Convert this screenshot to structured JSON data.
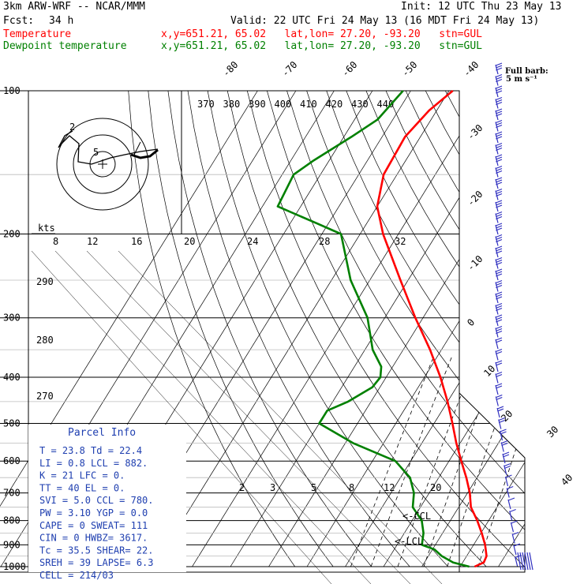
{
  "header": {
    "model": "3km ARW-WRF -- NCAR/MMM",
    "init": "Init: 12 UTC Thu 23 May 13",
    "fcst_label": "Fcst:",
    "fcst_value": "34 h",
    "valid": "Valid: 22 UTC Fri 24 May 13 (16 MDT Fri 24 May 13)",
    "temp_label": "Temperature",
    "temp_info": "x,y=651.21, 65.02   lat,lon= 27.20, -93.20   stn=GUL",
    "dew_label": "Dewpoint temperature",
    "dew_info": "x,y=651.21, 65.02   lat,lon= 27.20, -93.20   stn=GUL",
    "barb_note_1": "Full barb:",
    "barb_note_2": "5 m s⁻¹"
  },
  "colors": {
    "temperature": "#ff0000",
    "dewpoint": "#008000",
    "parcel_info": "#1f3fb0",
    "barbs": "#3030c0",
    "hodograph": "#000000"
  },
  "chart_data": {
    "type": "skew-t",
    "pressure_labels": [
      "100",
      "200",
      "300",
      "400",
      "500",
      "600",
      "700",
      "800",
      "900",
      "1000"
    ],
    "isotherm_labels": [
      "-80",
      "-70",
      "-60",
      "-50",
      "-40",
      "-30",
      "-20",
      "-10",
      "0",
      "10",
      "20",
      "30",
      "40"
    ],
    "theta_labels": [
      "370",
      "380",
      "390",
      "400",
      "410",
      "420",
      "430",
      "440"
    ],
    "theta_left_labels": [
      "290",
      "280",
      "270"
    ],
    "mixing_ratio_labels": [
      "2",
      "3",
      "5",
      "8",
      "12",
      "20"
    ],
    "hodo_speed_label": "kts",
    "hodo_speed_ticks": [
      "8",
      "12",
      "16",
      "20",
      "24",
      "28",
      "32"
    ],
    "ccl_label": "<-CCL",
    "lcl_label": "<-LCL",
    "temperature_profile": [
      {
        "p": 1000,
        "t": 23.8
      },
      {
        "p": 980,
        "t": 25.5
      },
      {
        "p": 950,
        "t": 25.2
      },
      {
        "p": 900,
        "t": 23.0
      },
      {
        "p": 850,
        "t": 20.2
      },
      {
        "p": 800,
        "t": 17.0
      },
      {
        "p": 750,
        "t": 13.2
      },
      {
        "p": 700,
        "t": 10.6
      },
      {
        "p": 650,
        "t": 7.2
      },
      {
        "p": 600,
        "t": 3.2
      },
      {
        "p": 550,
        "t": -1.0
      },
      {
        "p": 500,
        "t": -5.2
      },
      {
        "p": 450,
        "t": -10.0
      },
      {
        "p": 400,
        "t": -15.8
      },
      {
        "p": 350,
        "t": -23.0
      },
      {
        "p": 300,
        "t": -32.0
      },
      {
        "p": 250,
        "t": -42.0
      },
      {
        "p": 200,
        "t": -54.0
      },
      {
        "p": 175,
        "t": -60.0
      },
      {
        "p": 150,
        "t": -63.5
      },
      {
        "p": 125,
        "t": -64.0
      },
      {
        "p": 110,
        "t": -62.0
      },
      {
        "p": 100,
        "t": -59.0
      }
    ],
    "dewpoint_profile": [
      {
        "p": 1000,
        "t": 22.4
      },
      {
        "p": 980,
        "t": 17.5
      },
      {
        "p": 950,
        "t": 13.5
      },
      {
        "p": 920,
        "t": 10.5
      },
      {
        "p": 900,
        "t": 6.5
      },
      {
        "p": 850,
        "t": 5.0
      },
      {
        "p": 800,
        "t": 2.5
      },
      {
        "p": 750,
        "t": -2.0
      },
      {
        "p": 700,
        "t": -4.0
      },
      {
        "p": 650,
        "t": -7.5
      },
      {
        "p": 600,
        "t": -14.0
      },
      {
        "p": 550,
        "t": -28.0
      },
      {
        "p": 500,
        "t": -40.0
      },
      {
        "p": 470,
        "t": -40.0
      },
      {
        "p": 450,
        "t": -36.0
      },
      {
        "p": 420,
        "t": -32.0
      },
      {
        "p": 400,
        "t": -31.5
      },
      {
        "p": 380,
        "t": -33.0
      },
      {
        "p": 350,
        "t": -38.0
      },
      {
        "p": 300,
        "t": -44.5
      },
      {
        "p": 250,
        "t": -55.0
      },
      {
        "p": 200,
        "t": -65.0
      },
      {
        "p": 190,
        "t": -73.0
      },
      {
        "p": 175,
        "t": -86.0
      },
      {
        "p": 150,
        "t": -87.0
      },
      {
        "p": 140,
        "t": -84.0
      },
      {
        "p": 125,
        "t": -78.0
      },
      {
        "p": 115,
        "t": -74.0
      },
      {
        "p": 100,
        "t": -72.0
      }
    ]
  },
  "parcel_info": {
    "title": "Parcel Info",
    "rows": [
      "T  =   23.8  Td =  22.4",
      "LI =    0.8  LCL =  882.",
      "K  =     21  LFC =    0.",
      "TT =     40  EL  =    0.",
      "SVI =   5.0  CCL =  780.",
      "PW =   3.10  YGP =   0.0",
      "CAPE =    0  SWEAT=  111",
      "CIN =     0  HWBZ= 3617.",
      "Tc =   35.5  SHEAR=  22.",
      "SREH =   39  LAPSE=  6.3",
      "CELL = 214/03"
    ]
  }
}
